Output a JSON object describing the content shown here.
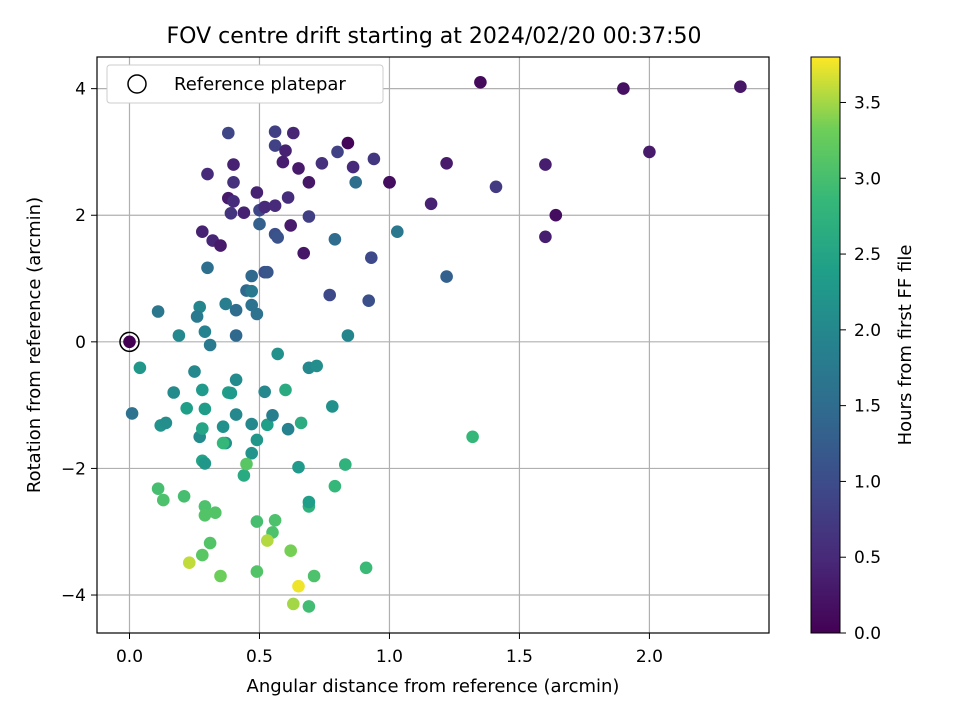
{
  "chart_data": {
    "type": "scatter",
    "title": "FOV centre drift starting at 2024/02/20 00:37:50",
    "xlabel": "Angular distance from reference (arcmin)",
    "ylabel": "Rotation from reference (arcmin)",
    "xlim": [
      -0.125,
      2.46
    ],
    "ylim": [
      -4.6,
      4.5
    ],
    "xticks": [
      0.0,
      0.5,
      1.0,
      1.5,
      2.0
    ],
    "xtick_labels": [
      "0.0",
      "0.5",
      "1.0",
      "1.5",
      "2.0"
    ],
    "yticks": [
      -4,
      -2,
      0,
      2,
      4
    ],
    "ytick_labels": [
      "−4",
      "−2",
      "0",
      "2",
      "4"
    ],
    "grid": true,
    "legend": {
      "position": "top-left",
      "entries": [
        "Reference platepar"
      ]
    },
    "reference_point": {
      "x": 0.0,
      "y": 0.0
    },
    "colorbar": {
      "label": "Hours from first FF file",
      "colormap": "viridis",
      "range": [
        0.0,
        3.8
      ],
      "ticks": [
        0.0,
        0.5,
        1.0,
        1.5,
        2.0,
        2.5,
        3.0,
        3.5
      ],
      "tick_labels": [
        "0.0",
        "0.5",
        "1.0",
        "1.5",
        "2.0",
        "2.5",
        "3.0",
        "3.5"
      ]
    },
    "points_columns": [
      "x",
      "y",
      "hours"
    ],
    "points": [
      [
        0.0,
        0.0,
        0.0
      ],
      [
        1.35,
        4.1,
        0.1
      ],
      [
        1.9,
        4.0,
        0.2
      ],
      [
        2.35,
        4.03,
        0.25
      ],
      [
        2.0,
        3.0,
        0.3
      ],
      [
        0.84,
        3.14,
        0.05
      ],
      [
        1.22,
        2.82,
        0.3
      ],
      [
        1.6,
        2.8,
        0.35
      ],
      [
        1.41,
        2.45,
        0.75
      ],
      [
        1.0,
        2.52,
        0.05
      ],
      [
        1.0,
        2.52,
        0.15
      ],
      [
        1.16,
        2.18,
        0.4
      ],
      [
        1.64,
        2.0,
        0.15
      ],
      [
        1.6,
        1.66,
        0.35
      ],
      [
        0.38,
        3.3,
        0.9
      ],
      [
        0.56,
        3.32,
        0.8
      ],
      [
        0.63,
        3.3,
        0.45
      ],
      [
        0.56,
        3.1,
        0.85
      ],
      [
        0.6,
        3.02,
        0.4
      ],
      [
        0.59,
        2.84,
        0.35
      ],
      [
        0.65,
        2.74,
        0.3
      ],
      [
        0.74,
        2.82,
        0.6
      ],
      [
        0.8,
        3.0,
        0.85
      ],
      [
        0.86,
        2.76,
        0.5
      ],
      [
        0.94,
        2.89,
        0.7
      ],
      [
        0.87,
        2.52,
        1.55
      ],
      [
        0.3,
        2.65,
        0.5
      ],
      [
        0.4,
        2.8,
        0.4
      ],
      [
        0.4,
        2.52,
        0.6
      ],
      [
        0.69,
        2.52,
        0.25
      ],
      [
        0.38,
        2.27,
        0.3
      ],
      [
        0.4,
        2.22,
        0.55
      ],
      [
        0.39,
        2.03,
        0.65
      ],
      [
        0.44,
        2.04,
        0.4
      ],
      [
        0.49,
        2.36,
        0.4
      ],
      [
        0.5,
        2.08,
        0.9
      ],
      [
        0.52,
        2.13,
        0.5
      ],
      [
        0.56,
        2.15,
        0.5
      ],
      [
        0.61,
        2.28,
        0.55
      ],
      [
        0.69,
        1.98,
        0.8
      ],
      [
        0.62,
        1.84,
        0.3
      ],
      [
        0.67,
        1.4,
        0.25
      ],
      [
        0.5,
        1.86,
        1.3
      ],
      [
        0.56,
        1.7,
        1.05
      ],
      [
        0.57,
        1.65,
        1.1
      ],
      [
        0.79,
        1.62,
        1.5
      ],
      [
        1.03,
        1.74,
        1.7
      ],
      [
        0.93,
        1.33,
        0.95
      ],
      [
        1.22,
        1.03,
        1.3
      ],
      [
        0.77,
        0.74,
        0.95
      ],
      [
        0.92,
        0.65,
        1.05
      ],
      [
        0.28,
        1.74,
        0.4
      ],
      [
        0.32,
        1.6,
        0.45
      ],
      [
        0.35,
        1.52,
        0.3
      ],
      [
        0.3,
        1.17,
        1.55
      ],
      [
        0.47,
        1.04,
        1.45
      ],
      [
        0.52,
        1.1,
        1.05
      ],
      [
        0.53,
        1.1,
        1.15
      ],
      [
        0.45,
        0.81,
        1.45
      ],
      [
        0.47,
        0.8,
        1.75
      ],
      [
        0.37,
        0.6,
        1.8
      ],
      [
        0.41,
        0.5,
        1.5
      ],
      [
        0.47,
        0.58,
        1.6
      ],
      [
        0.49,
        0.44,
        1.6
      ],
      [
        0.41,
        0.1,
        1.45
      ],
      [
        0.27,
        0.55,
        1.95
      ],
      [
        0.26,
        0.4,
        1.75
      ],
      [
        0.29,
        0.16,
        1.9
      ],
      [
        0.31,
        -0.05,
        1.75
      ],
      [
        0.11,
        0.48,
        1.7
      ],
      [
        0.19,
        0.1,
        2.0
      ],
      [
        0.84,
        0.1,
        1.95
      ],
      [
        0.04,
        -0.41,
        2.25
      ],
      [
        0.01,
        -1.13,
        1.6
      ],
      [
        0.17,
        -0.8,
        2.05
      ],
      [
        0.25,
        -0.47,
        2.0
      ],
      [
        0.28,
        -0.76,
        2.3
      ],
      [
        0.38,
        -0.8,
        2.4
      ],
      [
        0.39,
        -0.81,
        2.3
      ],
      [
        0.41,
        -0.6,
        2.05
      ],
      [
        0.57,
        -0.19,
        2.15
      ],
      [
        0.52,
        -0.79,
        2.0
      ],
      [
        0.6,
        -0.76,
        2.6
      ],
      [
        0.69,
        -0.41,
        2.0
      ],
      [
        0.72,
        -0.38,
        2.1
      ],
      [
        0.29,
        -1.06,
        2.35
      ],
      [
        0.22,
        -1.05,
        2.4
      ],
      [
        0.12,
        -1.32,
        2.2
      ],
      [
        0.14,
        -1.28,
        2.1
      ],
      [
        0.27,
        -1.5,
        2.05
      ],
      [
        0.28,
        -1.37,
        2.5
      ],
      [
        0.36,
        -1.34,
        2.15
      ],
      [
        0.41,
        -1.15,
        2.0
      ],
      [
        0.47,
        -1.3,
        2.0
      ],
      [
        0.53,
        -1.31,
        2.4
      ],
      [
        0.55,
        -1.16,
        1.85
      ],
      [
        0.61,
        -1.38,
        1.9
      ],
      [
        0.66,
        -1.28,
        2.65
      ],
      [
        0.78,
        -1.02,
        2.15
      ],
      [
        0.37,
        -1.6,
        2.15
      ],
      [
        0.36,
        -1.6,
        2.85
      ],
      [
        0.49,
        -1.55,
        2.25
      ],
      [
        0.47,
        -1.76,
        2.2
      ],
      [
        0.28,
        -1.88,
        2.45
      ],
      [
        0.29,
        -1.92,
        2.25
      ],
      [
        0.44,
        -2.11,
        2.6
      ],
      [
        0.45,
        -1.93,
        3.15
      ],
      [
        0.65,
        -1.98,
        2.3
      ],
      [
        0.83,
        -1.94,
        2.75
      ],
      [
        1.32,
        -1.5,
        2.85
      ],
      [
        0.11,
        -2.32,
        3.0
      ],
      [
        0.13,
        -2.5,
        3.05
      ],
      [
        0.21,
        -2.44,
        3.0
      ],
      [
        0.29,
        -2.6,
        3.05
      ],
      [
        0.29,
        -2.74,
        3.1
      ],
      [
        0.33,
        -2.7,
        3.1
      ],
      [
        0.49,
        -2.84,
        3.0
      ],
      [
        0.56,
        -2.82,
        3.05
      ],
      [
        0.55,
        -3.01,
        3.05
      ],
      [
        0.69,
        -2.6,
        2.75
      ],
      [
        0.69,
        -2.53,
        2.4
      ],
      [
        0.79,
        -2.28,
        2.85
      ],
      [
        0.31,
        -3.18,
        3.1
      ],
      [
        0.28,
        -3.37,
        3.15
      ],
      [
        0.23,
        -3.49,
        3.6
      ],
      [
        0.35,
        -3.7,
        3.3
      ],
      [
        0.49,
        -3.63,
        3.1
      ],
      [
        0.53,
        -3.14,
        3.55
      ],
      [
        0.62,
        -3.3,
        3.35
      ],
      [
        0.71,
        -3.7,
        3.05
      ],
      [
        0.91,
        -3.57,
        2.9
      ],
      [
        0.65,
        -3.86,
        3.75
      ],
      [
        0.63,
        -4.14,
        3.5
      ],
      [
        0.69,
        -4.18,
        2.95
      ]
    ]
  }
}
